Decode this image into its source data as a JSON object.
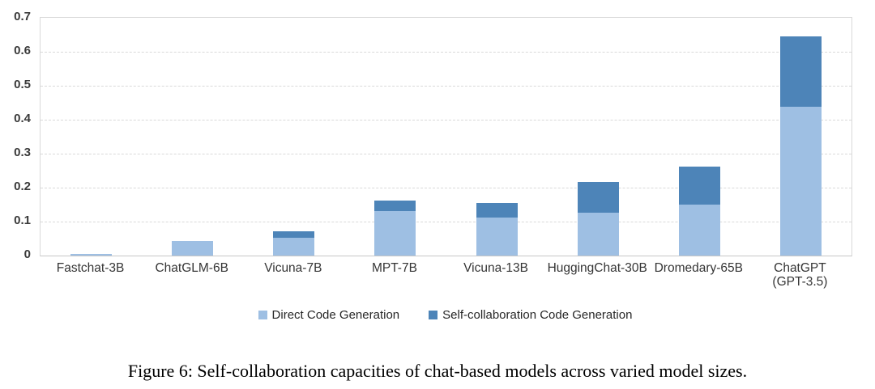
{
  "figure": {
    "caption": "Figure 6: Self-collaboration capacities of chat-based models across varied model sizes."
  },
  "chart_data": {
    "type": "bar",
    "subtype": "stacked-vertical",
    "title": "",
    "xlabel": "",
    "ylabel": "",
    "categories": [
      "Fastchat-3B",
      "ChatGLM-6B",
      "Vicuna-7B",
      "MPT-7B",
      "Vicuna-13B",
      "HuggingChat-30B",
      "Dromedary-65B",
      "ChatGPT\n(GPT-3.5)"
    ],
    "series": [
      {
        "name": "Direct Code Generation",
        "color": "#9EBFE3",
        "values": [
          0.005,
          0.042,
          0.052,
          0.132,
          0.113,
          0.127,
          0.15,
          0.437
        ]
      },
      {
        "name": "Self-collaboration Code Generation",
        "color": "#4D84B8",
        "values": [
          0.0,
          0.0,
          0.02,
          0.032,
          0.042,
          0.09,
          0.112,
          0.208
        ]
      }
    ],
    "stacked_totals": [
      0.005,
      0.042,
      0.072,
      0.164,
      0.155,
      0.217,
      0.262,
      0.645
    ],
    "ylim": [
      0,
      0.7
    ],
    "yticks": [
      "0",
      "0.1",
      "0.2",
      "0.3",
      "0.4",
      "0.5",
      "0.6",
      "0.7"
    ],
    "grid": "horizontal-dashed",
    "gridline_color": "#d9d9d9",
    "legend_position": "bottom"
  }
}
